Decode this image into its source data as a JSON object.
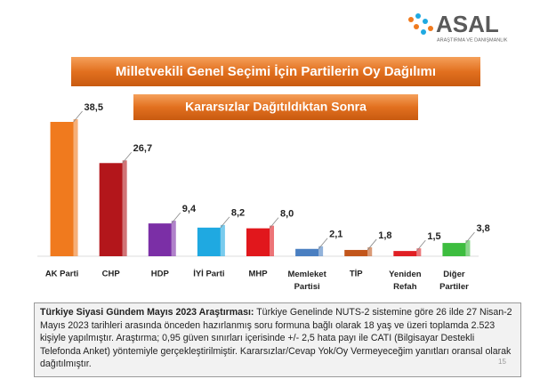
{
  "logo": {
    "name": "ASAL",
    "tagline": "ARAŞTIRMA VE DANIŞMANLIK"
  },
  "chart_data": {
    "type": "bar",
    "title": "Milletvekili Genel Seçimi İçin Partilerin Oy Dağılımı",
    "subtitle": "Kararsızlar Dağıtıldıktan Sonra",
    "categories": [
      "AK Parti",
      "CHP",
      "HDP",
      "İYİ Parti",
      "MHP",
      "Memleket Partisi",
      "TİP",
      "Yeniden Refah",
      "Diğer Partiler"
    ],
    "values": [
      38.5,
      26.7,
      9.4,
      8.2,
      8.0,
      2.1,
      1.8,
      1.5,
      3.8
    ],
    "value_labels": [
      "38,5",
      "26,7",
      "9,4",
      "8,2",
      "8,0",
      "2,1",
      "1,8",
      "1,5",
      "3,8"
    ],
    "colors": [
      "#f07a1e",
      "#b3161b",
      "#7b2fa6",
      "#1fa9e1",
      "#e1171c",
      "#4a7fc1",
      "#c2561b",
      "#e01f24",
      "#3dbd3f"
    ]
  },
  "footer": {
    "bold": "Türkiye Siyasi Gündem Mayıs 2023 Araştırması:",
    "text": "Türkiye Genelinde NUTS-2 sistemine göre 26 ilde 27 Nisan-2 Mayıs 2023 tarihleri arasında önceden hazırlanmış soru formuna bağlı olarak 18 yaş ve üzeri toplamda 2.523 kişiyle yapılmıştır. Araştırma; 0,95 güven sınırları içerisinde +/- 2,5 hata payı ile CATI (Bilgisayar Destekli Telefonda Anket) yöntemiyle gerçekleştirilmiştir. Kararsızlar/Cevap Yok/Oy Vermeyeceğim yanıtları oransal olarak dağıtılmıştır.",
    "page": "15"
  }
}
